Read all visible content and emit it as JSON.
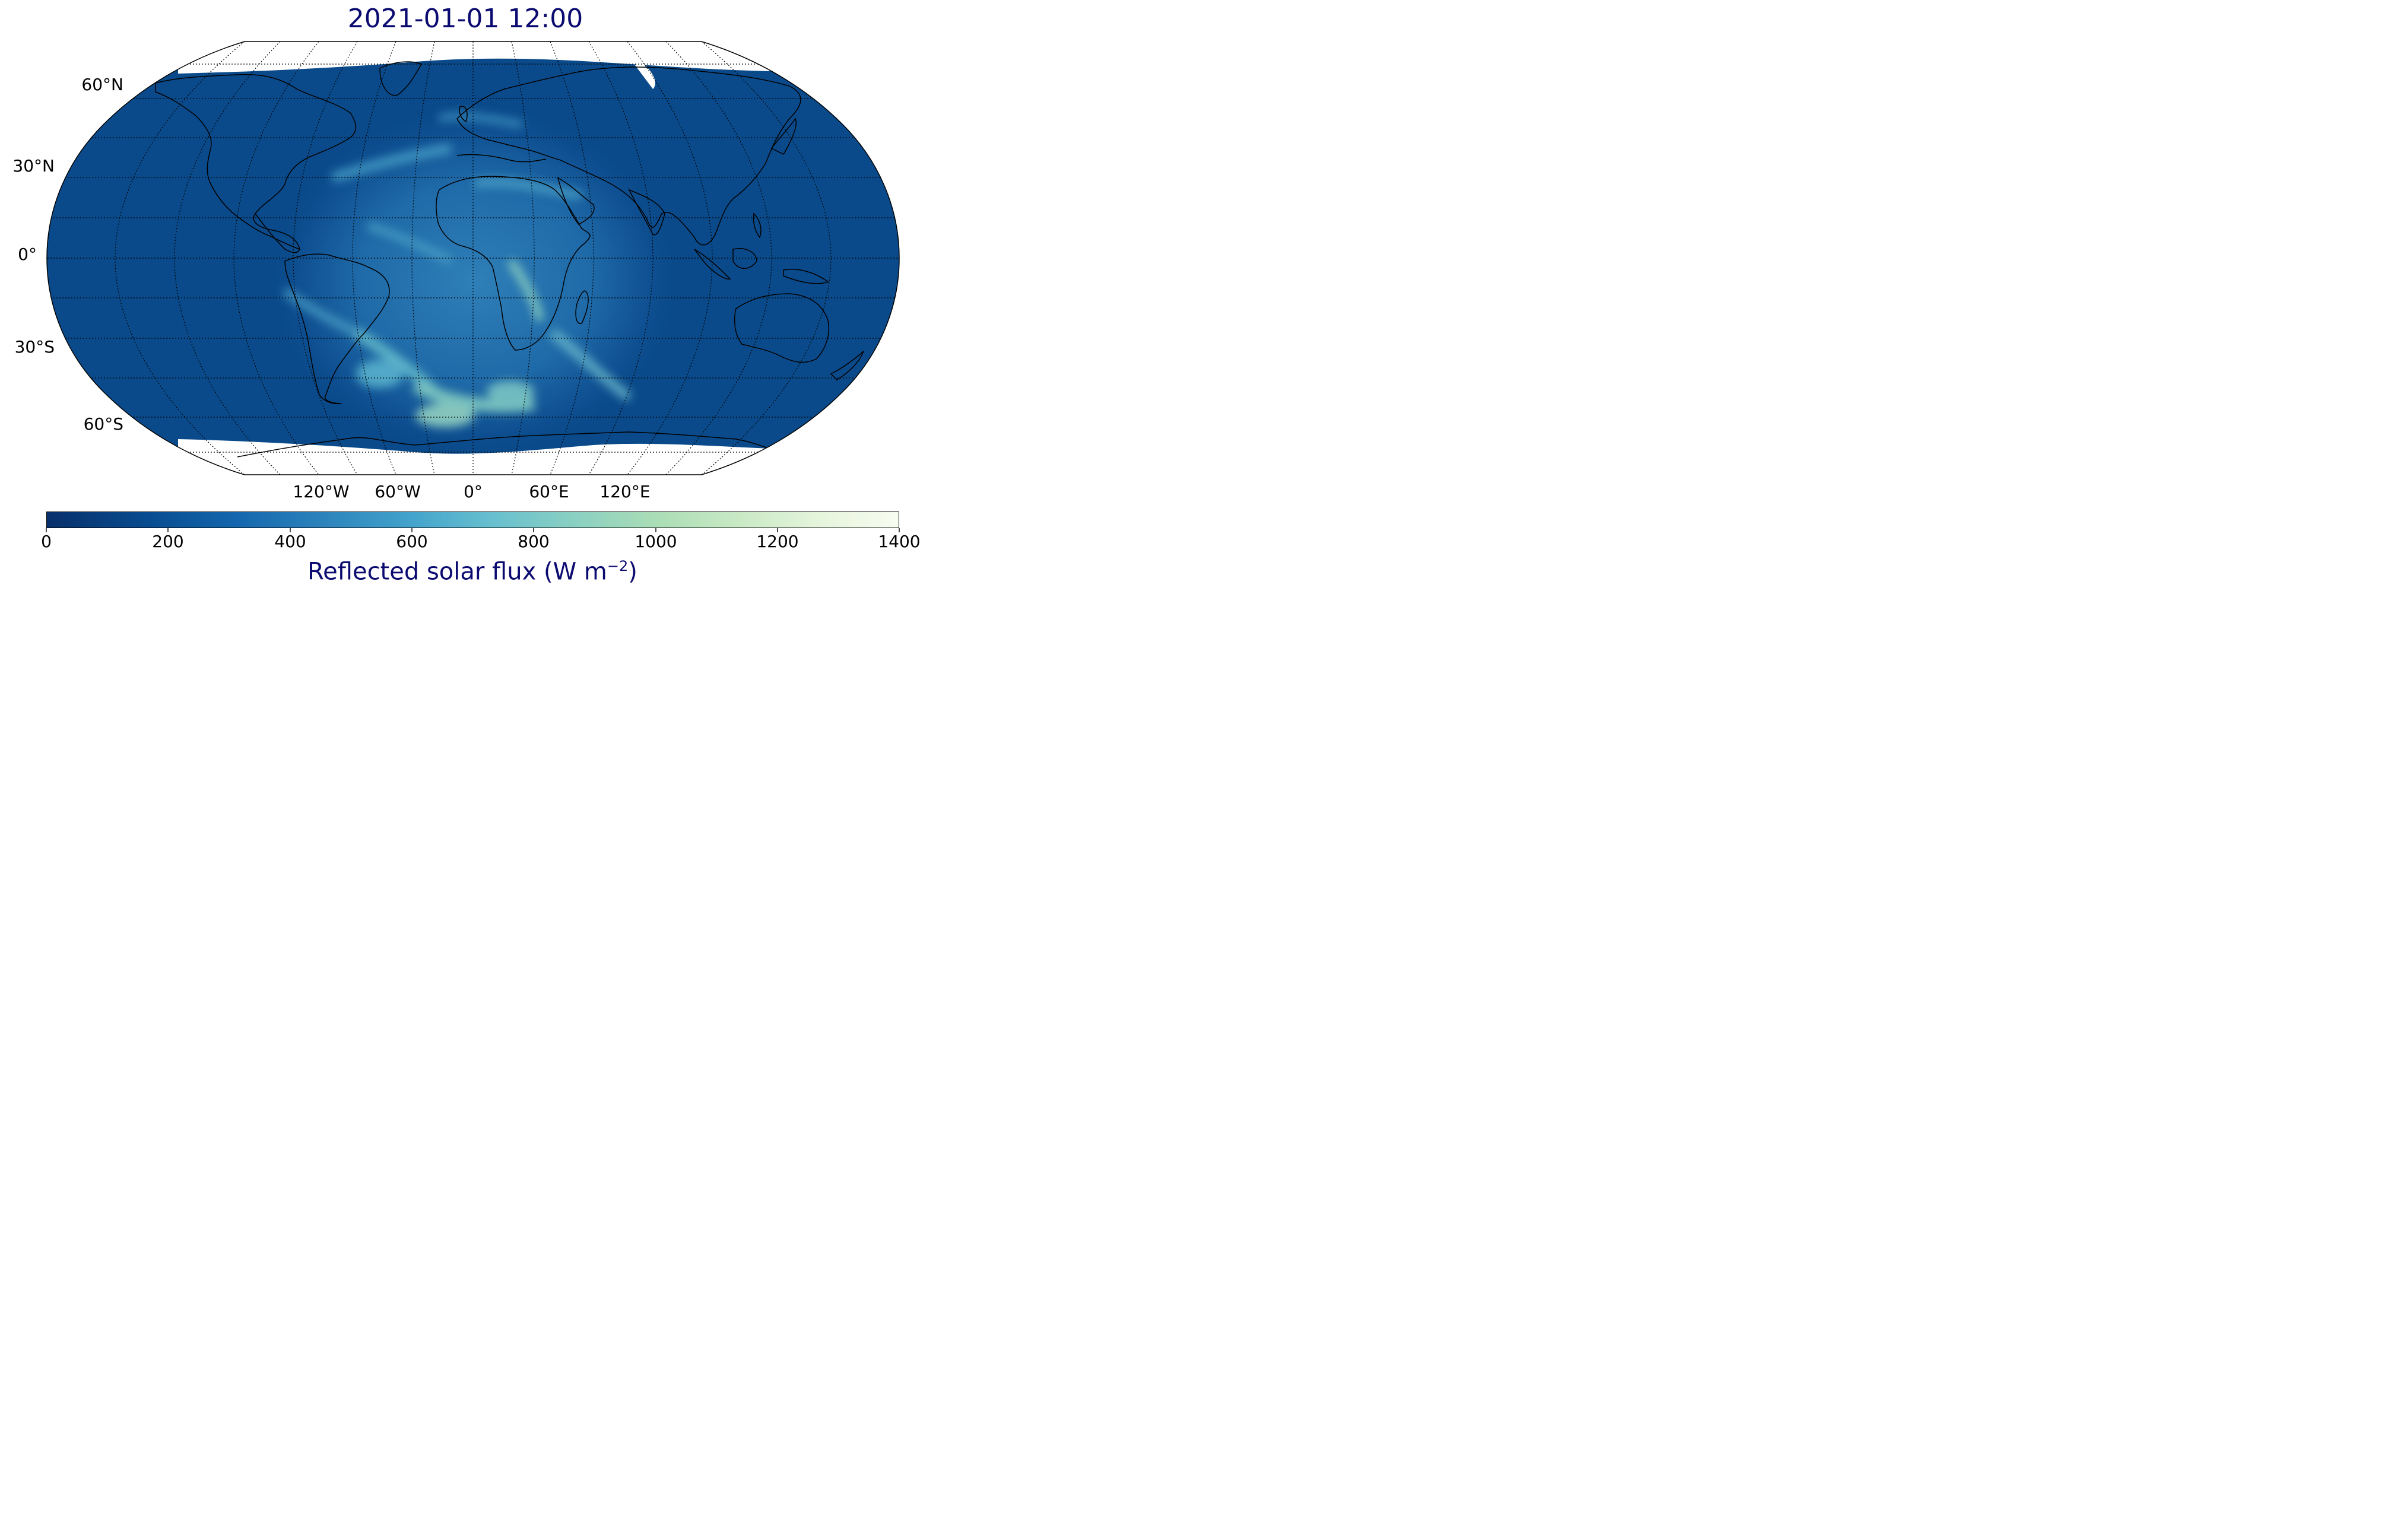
{
  "title": "2021-01-01 12:00",
  "map": {
    "projection": "Robinson",
    "ocean_color": "#0a4a8a",
    "land_outline_color": "#000000",
    "no_data_color": "#ffffff",
    "lat_labels": [
      "60°N",
      "30°N",
      "0°",
      "30°S",
      "60°S"
    ],
    "lon_labels": [
      "120°W",
      "60°W",
      "0°",
      "60°E",
      "120°E"
    ],
    "gridline_style": "dotted"
  },
  "colorbar": {
    "label_main": "Reflected solar flux (W m",
    "label_sup": "−2",
    "label_close": ")",
    "ticks": [
      "0",
      "200",
      "400",
      "600",
      "800",
      "1000",
      "1200",
      "1400"
    ],
    "range": [
      0,
      1400
    ],
    "colormap": "GnBu_r"
  }
}
